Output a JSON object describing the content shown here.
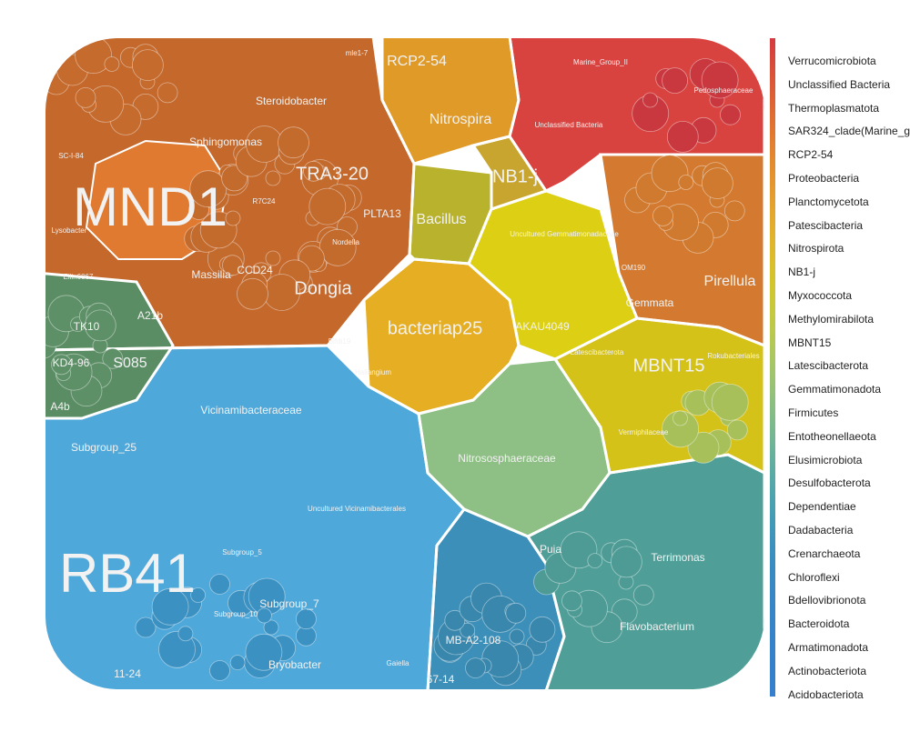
{
  "chart_data": {
    "type": "voronoi treemap",
    "legend_position": "right",
    "legend_phyla": [
      "Verrucomicrobiota",
      "Unclassified Bacteria",
      "Thermoplasmatota",
      "SAR324_clade(Marine_group_B)",
      "RCP2-54",
      "Proteobacteria",
      "Planctomycetota",
      "Patescibacteria",
      "Nitrospirota",
      "NB1-j",
      "Myxococcota",
      "Methylomirabilota",
      "MBNT15",
      "Latescibacterota",
      "Gemmatimonadota",
      "Firmicutes",
      "Entotheonellaeota",
      "Elusimicrobiota",
      "Desulfobacterota",
      "Dependentiae",
      "Dadabacteria",
      "Crenarchaeota",
      "Chloroflexi",
      "Bdellovibrionota",
      "Bacteroidota",
      "Armatimonadota",
      "Actinobacteriota",
      "Acidobacteriota"
    ],
    "legend_colors": [
      "#d63a3f",
      "#d84a3a",
      "#dc5a36",
      "#df6a32",
      "#e27a30",
      "#e3892f",
      "#e4972e",
      "#e4a42d",
      "#e2b12c",
      "#dcbc2b",
      "#d3c52c",
      "#c8c93a",
      "#bbc94c",
      "#acc75f",
      "#9cc470",
      "#8bbf80",
      "#7ab98e",
      "#68b29b",
      "#58aaa6",
      "#4aa2b0",
      "#3f99b8",
      "#3a90bf",
      "#388ac3",
      "#3786c6",
      "#3783c8",
      "#3681ca",
      "#3580cb",
      "#357fcc"
    ],
    "labels": [
      {
        "text": "MND1",
        "fill": "#e07a30",
        "size": "xl"
      },
      {
        "text": "RB41",
        "fill": "#4ea9dc",
        "size": "xl"
      },
      {
        "text": "bacteriap25",
        "fill": "#e8b020",
        "size": "l"
      },
      {
        "text": "Dongia",
        "fill": "#c0682c",
        "size": "l"
      },
      {
        "text": "TRA3-20",
        "fill": "#c86a2e",
        "size": "l"
      },
      {
        "text": "MBNT15",
        "fill": "#d4c020",
        "size": "l"
      },
      {
        "text": "Nitrospira",
        "fill": "#e09a28",
        "size": "m"
      },
      {
        "text": "NB1-j",
        "fill": "#c8a52e",
        "size": "l"
      },
      {
        "text": "RCP2-54",
        "fill": "#cc5530",
        "size": "m"
      },
      {
        "text": "Pirellula",
        "fill": "#d97a32",
        "size": "m"
      },
      {
        "text": "S085",
        "fill": "#5a8f68",
        "size": "m"
      },
      {
        "text": "Bacillus",
        "fill": "#b5b42c",
        "size": "m"
      },
      {
        "text": "Steroidobacter",
        "fill": "#c46a2c",
        "size": "s"
      },
      {
        "text": "Sphingomonas",
        "fill": "#c86b2d",
        "size": "s"
      },
      {
        "text": "Massilia",
        "fill": "#c0652b",
        "size": "s"
      },
      {
        "text": "PLTA13",
        "fill": "#c36a2d",
        "size": "s"
      },
      {
        "text": "Nordella",
        "fill": "#bb6229",
        "size": "xs"
      },
      {
        "text": "CCD24",
        "fill": "#c0672c",
        "size": "s"
      },
      {
        "text": "R7C24",
        "fill": "#b85f28",
        "size": "xs"
      },
      {
        "text": "Lysobacter",
        "fill": "#b9602a",
        "size": "xs"
      },
      {
        "text": "SC-I-84",
        "fill": "#b35e2a",
        "size": "xs"
      },
      {
        "text": "Ellin6067",
        "fill": "#b8602a",
        "size": "xs"
      },
      {
        "text": "A21b",
        "fill": "#b35f2a",
        "size": "s"
      },
      {
        "text": "Vicinamibacteraceae",
        "fill": "#4aa6d8",
        "size": "s"
      },
      {
        "text": "Uncultured Vicinamibacterales",
        "fill": "#66bae0",
        "size": "xs"
      },
      {
        "text": "Subgroup_25",
        "fill": "#3f9ccd",
        "size": "s"
      },
      {
        "text": "Subgroup_5",
        "fill": "#3a95c4",
        "size": "xs"
      },
      {
        "text": "Subgroup_7",
        "fill": "#3890c0",
        "size": "s"
      },
      {
        "text": "Subgroup_10",
        "fill": "#3a90c0",
        "size": "xs"
      },
      {
        "text": "Bryobacter",
        "fill": "#348bbb",
        "size": "s"
      },
      {
        "text": "11-24",
        "fill": "#3188b6",
        "size": "s"
      },
      {
        "text": "Nitrososphaeraceae",
        "fill": "#8dbf84",
        "size": "s"
      },
      {
        "text": "Uncultured Gemmatimonadaceae",
        "fill": "#dccf14",
        "size": "xs"
      },
      {
        "text": "AKAU4049",
        "fill": "#d2c617",
        "size": "s"
      },
      {
        "text": "Gemmata",
        "fill": "#d47c2e",
        "size": "s"
      },
      {
        "text": "OM190",
        "fill": "#d07a2e",
        "size": "xs"
      },
      {
        "text": "Latescibacterota",
        "fill": "#d1bd22",
        "size": "xs"
      },
      {
        "text": "Vermiphilaceae",
        "fill": "#8bbb7f",
        "size": "xs"
      },
      {
        "text": "Rokubacteriales",
        "fill": "#c8b422",
        "size": "xs"
      },
      {
        "text": "Terrimonas",
        "fill": "#4d9e9a",
        "size": "s"
      },
      {
        "text": "Flavobacterium",
        "fill": "#5aa8a0",
        "size": "s"
      },
      {
        "text": "Puia",
        "fill": "#4f9a93",
        "size": "s"
      },
      {
        "text": "MB-A2-108",
        "fill": "#3689a8",
        "size": "s"
      },
      {
        "text": "Gaiella",
        "fill": "#3585a6",
        "size": "xs"
      },
      {
        "text": "67-14",
        "fill": "#3284a2",
        "size": "s"
      },
      {
        "text": "Unclassified Bacteria",
        "fill": "#d8433f",
        "size": "xs"
      },
      {
        "text": "Pedosphaeraceae",
        "fill": "#c7363f",
        "size": "xs"
      },
      {
        "text": "Haliangium",
        "fill": "#b5951f",
        "size": "xs"
      },
      {
        "text": "Blfdi19",
        "fill": "#b99a22",
        "size": "xs"
      },
      {
        "text": "KD4-96",
        "fill": "#5b8b63",
        "size": "s"
      },
      {
        "text": "TK10",
        "fill": "#5d8e66",
        "size": "s"
      },
      {
        "text": "A4b",
        "fill": "#5e9068",
        "size": "s"
      },
      {
        "text": "mle1-7",
        "fill": "#c06a2d",
        "size": "xs"
      },
      {
        "text": "Marine_Group_II",
        "fill": "#d8503a",
        "size": "xs"
      }
    ]
  }
}
